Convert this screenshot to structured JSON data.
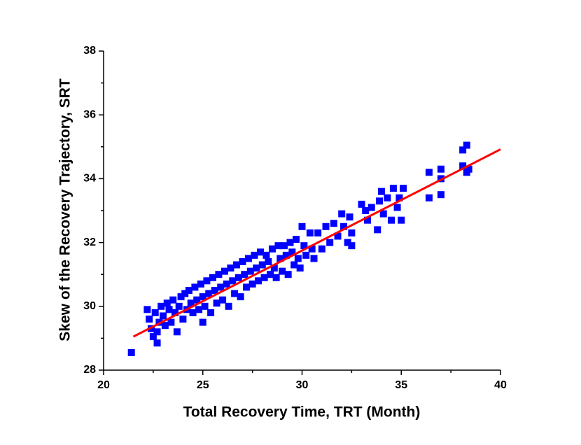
{
  "chart_data": {
    "type": "scatter",
    "xlabel": "Total Recovery Time, TRT (Month)",
    "ylabel": "Skew of the Recovery Trajectory, SRT",
    "xlim": [
      20,
      40
    ],
    "xticks": [
      20,
      25,
      30,
      35,
      40
    ],
    "xminorticks": [
      22.5,
      27.5,
      32.5,
      37.5
    ],
    "ylim": [
      28,
      38
    ],
    "yticks": [
      28,
      30,
      32,
      34,
      36,
      38
    ],
    "yminorticks": [
      29,
      31,
      33,
      35,
      37
    ],
    "series": [
      {
        "type": "scatter",
        "color": "#0000ff",
        "x": [
          21.4,
          22.2,
          22.3,
          22.4,
          22.5,
          22.6,
          22.7,
          22.7,
          22.8,
          22.9,
          23.0,
          23.1,
          23.2,
          23.3,
          23.4,
          23.5,
          23.6,
          23.7,
          23.8,
          23.9,
          24.0,
          24.1,
          24.2,
          24.3,
          24.4,
          24.5,
          24.6,
          24.7,
          24.8,
          24.9,
          25.0,
          25.0,
          25.1,
          25.2,
          25.3,
          25.4,
          25.5,
          25.6,
          25.7,
          25.8,
          25.9,
          26.0,
          26.1,
          26.2,
          26.3,
          26.4,
          26.5,
          26.6,
          26.7,
          26.8,
          26.9,
          27.0,
          27.1,
          27.2,
          27.3,
          27.4,
          27.5,
          27.6,
          27.7,
          27.8,
          27.9,
          28.0,
          28.1,
          28.2,
          28.3,
          28.4,
          28.5,
          28.6,
          28.7,
          28.8,
          28.9,
          29.0,
          29.1,
          29.2,
          29.3,
          29.4,
          29.5,
          29.6,
          29.7,
          29.8,
          29.9,
          30.0,
          30.1,
          30.2,
          30.4,
          30.5,
          30.6,
          30.8,
          31.0,
          31.2,
          31.4,
          31.6,
          31.8,
          32.0,
          32.1,
          32.3,
          32.4,
          32.5,
          32.5,
          33.0,
          33.2,
          33.3,
          33.5,
          33.8,
          33.9,
          34.0,
          34.1,
          34.3,
          34.5,
          34.6,
          34.8,
          34.9,
          35.0,
          35.1,
          36.4,
          36.4,
          37.0,
          37.0,
          37.0,
          38.1,
          38.1,
          38.3,
          38.3,
          38.4
        ],
        "values": [
          28.55,
          29.9,
          29.6,
          29.3,
          29.05,
          29.8,
          28.85,
          29.2,
          29.5,
          30.0,
          29.7,
          29.4,
          30.1,
          29.9,
          29.5,
          30.2,
          29.8,
          29.2,
          30.0,
          30.3,
          29.6,
          30.4,
          29.9,
          30.5,
          30.1,
          29.8,
          30.6,
          30.2,
          29.9,
          30.7,
          30.3,
          29.5,
          30.0,
          30.8,
          30.4,
          29.8,
          30.9,
          30.5,
          30.1,
          31.0,
          30.6,
          30.2,
          31.1,
          30.7,
          30.0,
          31.2,
          30.8,
          30.4,
          31.3,
          30.9,
          30.3,
          31.4,
          31.0,
          30.6,
          31.5,
          31.1,
          30.7,
          31.6,
          31.2,
          30.8,
          31.7,
          31.3,
          30.9,
          31.6,
          31.4,
          31.0,
          31.8,
          31.2,
          30.9,
          31.9,
          31.5,
          31.1,
          31.9,
          31.6,
          31.0,
          32.0,
          31.7,
          31.3,
          32.1,
          31.5,
          31.2,
          32.5,
          31.9,
          31.6,
          32.3,
          31.8,
          31.5,
          32.3,
          31.8,
          32.5,
          32.0,
          32.6,
          32.2,
          32.9,
          32.5,
          32.0,
          32.8,
          32.3,
          31.9,
          33.2,
          33.0,
          32.7,
          33.1,
          32.4,
          33.3,
          33.6,
          32.9,
          33.4,
          32.7,
          33.7,
          33.1,
          33.4,
          32.7,
          33.7,
          34.2,
          33.4,
          34.3,
          33.5,
          34.0,
          34.9,
          34.4,
          35.05,
          34.2,
          34.3
        ]
      },
      {
        "type": "line",
        "color": "#ff0000",
        "x": [
          21.5,
          40
        ],
        "values": [
          29.05,
          34.92
        ]
      }
    ]
  }
}
